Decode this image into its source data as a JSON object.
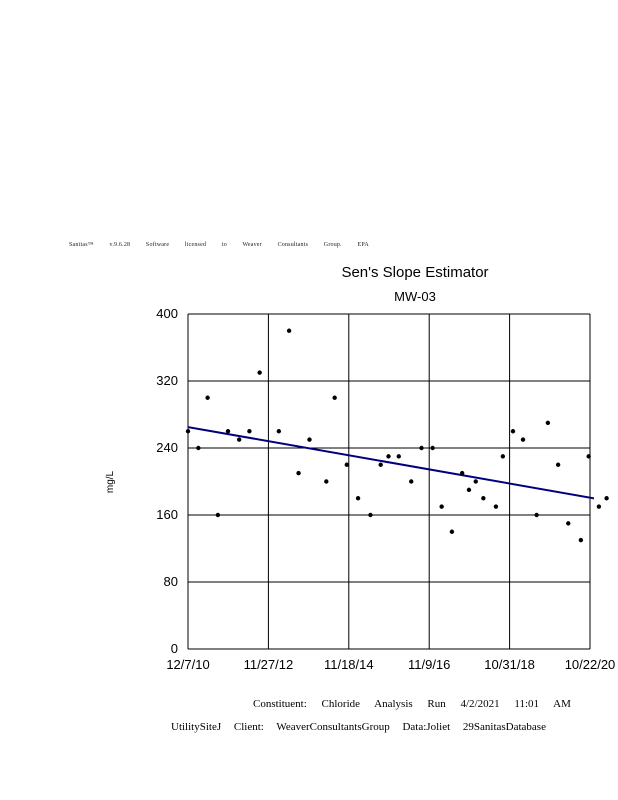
{
  "license_text": "Sanitas™ v.9.6.28 Software licensed to Weaver Consultants Group. EPA",
  "chart_data": {
    "type": "scatter",
    "title": "Sen's Slope Estimator",
    "subtitle": "MW-03",
    "xlabel": "",
    "ylabel": "mg/L",
    "ylim": [
      0,
      400
    ],
    "yticks": [
      "0",
      "80",
      "160",
      "240",
      "320",
      "400"
    ],
    "xticks": [
      "12/7/10",
      "11/27/12",
      "11/18/14",
      "11/9/16",
      "10/31/18",
      "10/22/20"
    ],
    "xlim": [
      "2010-12-07",
      "2020-10-22"
    ],
    "grid": true,
    "series": [
      {
        "color": "#000000",
        "points": [
          {
            "x": "2010-12-07",
            "y": 260
          },
          {
            "x": "2011-03-10",
            "y": 240
          },
          {
            "x": "2011-06-01",
            "y": 300
          },
          {
            "x": "2011-09-01",
            "y": 160
          },
          {
            "x": "2011-12-01",
            "y": 260
          },
          {
            "x": "2012-03-10",
            "y": 250
          },
          {
            "x": "2012-06-10",
            "y": 260
          },
          {
            "x": "2012-09-10",
            "y": 330
          },
          {
            "x": "2013-03-01",
            "y": 260
          },
          {
            "x": "2013-06-01",
            "y": 380
          },
          {
            "x": "2013-08-25",
            "y": 210
          },
          {
            "x": "2013-12-01",
            "y": 250
          },
          {
            "x": "2014-05-01",
            "y": 200
          },
          {
            "x": "2014-07-15",
            "y": 300
          },
          {
            "x": "2014-11-01",
            "y": 220
          },
          {
            "x": "2015-02-10",
            "y": 180
          },
          {
            "x": "2015-06-01",
            "y": 160
          },
          {
            "x": "2015-09-01",
            "y": 220
          },
          {
            "x": "2015-11-10",
            "y": 230
          },
          {
            "x": "2016-02-10",
            "y": 230
          },
          {
            "x": "2016-06-01",
            "y": 200
          },
          {
            "x": "2016-09-01",
            "y": 240
          },
          {
            "x": "2016-12-10",
            "y": 240
          },
          {
            "x": "2017-03-01",
            "y": 170
          },
          {
            "x": "2017-06-01",
            "y": 140
          },
          {
            "x": "2017-09-01",
            "y": 210
          },
          {
            "x": "2017-11-01",
            "y": 190
          },
          {
            "x": "2018-01-01",
            "y": 200
          },
          {
            "x": "2018-03-10",
            "y": 180
          },
          {
            "x": "2018-07-01",
            "y": 170
          },
          {
            "x": "2018-09-01",
            "y": 230
          },
          {
            "x": "2018-12-01",
            "y": 260
          },
          {
            "x": "2019-03-01",
            "y": 250
          },
          {
            "x": "2019-07-01",
            "y": 160
          },
          {
            "x": "2019-10-10",
            "y": 270
          },
          {
            "x": "2020-01-10",
            "y": 220
          },
          {
            "x": "2020-04-10",
            "y": 150
          },
          {
            "x": "2020-08-01",
            "y": 130
          },
          {
            "x": "2020-10-10",
            "y": 230
          },
          {
            "x": "2021-01-10",
            "y": 170
          },
          {
            "x": "2021-03-20",
            "y": 180
          }
        ]
      }
    ],
    "trend_line": {
      "color": "#00007f",
      "start": {
        "x": "2010-12-07",
        "y": 265
      },
      "end": {
        "x": "2021-03-31",
        "y": 177
      }
    }
  },
  "footer": {
    "constituent": "Constituent: Chloride Analysis Run 4/2/2021 11:01 AM",
    "client": "UtilitySiteJ Client: WeaverConsultantsGroup Data:Joliet 29SanitasDatabase"
  }
}
